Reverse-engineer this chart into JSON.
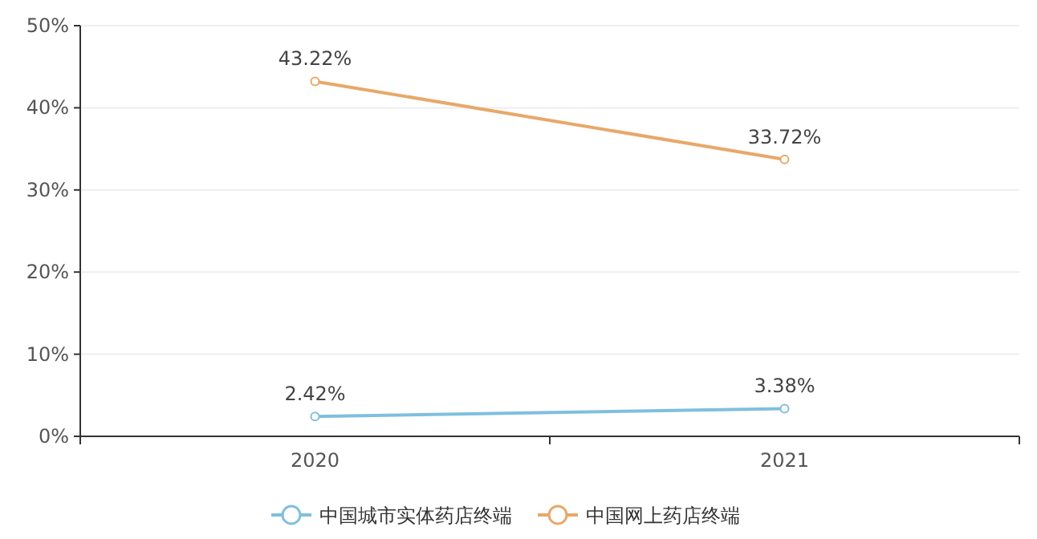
{
  "chart_data": {
    "type": "line",
    "categories": [
      "2020",
      "2021"
    ],
    "series": [
      {
        "name": "中国城市实体药店终端",
        "color": "#7fbfdf",
        "values": [
          2.42,
          3.38
        ],
        "value_labels": [
          "2.42%",
          "3.38%"
        ]
      },
      {
        "name": "中国网上药店终端",
        "color": "#e8a868",
        "values": [
          43.22,
          33.72
        ],
        "value_labels": [
          "43.22%",
          "33.72%"
        ]
      }
    ],
    "ylim": [
      0,
      50
    ],
    "yticks": [
      {
        "value": 0,
        "label": "0%"
      },
      {
        "value": 10,
        "label": "10%"
      },
      {
        "value": 20,
        "label": "20%"
      },
      {
        "value": 30,
        "label": "30%"
      },
      {
        "value": 40,
        "label": "40%"
      },
      {
        "value": 50,
        "label": "50%"
      }
    ],
    "grid": "y",
    "legend": "bottom",
    "marker": "circle",
    "line_style": "solid"
  }
}
